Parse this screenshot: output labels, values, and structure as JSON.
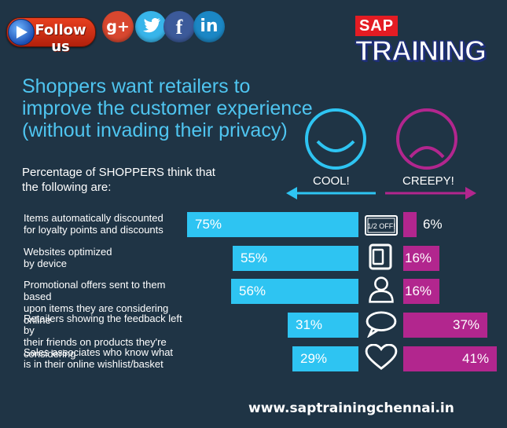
{
  "header": {
    "follow_label": "Follow us",
    "social": {
      "gplus": "g+",
      "facebook": "f",
      "linkedin": "in"
    },
    "brand_top": "SAP",
    "brand_bottom": "TRAINING"
  },
  "colors": {
    "background": "#1f3445",
    "cool": "#2ec4f2",
    "creepy": "#b2268e",
    "headline": "#4fc5f0"
  },
  "icons": [
    "discount-tag-icon",
    "device-icon",
    "person-icon",
    "speech-bubble-icon",
    "heart-icon"
  ],
  "chart_data": {
    "type": "bar",
    "title": "Shoppers want retailers to improve the customer experience (without invading their privacy)",
    "subtitle": "Percentage of SHOPPERS think that the following are:",
    "categories": [
      "Items automatically discounted for loyalty points and discounts",
      "Websites optimized by device",
      "Promotional offers sent to them based upon items they are considering online",
      "Retailers showing the feedback left by their friends on products they're considering",
      "Sales associates who know what is in their online wishlist/basket"
    ],
    "category_lines": [
      [
        "Items automatically discounted",
        "for loyalty points and discounts"
      ],
      [
        "Websites optimized",
        "by device"
      ],
      [
        "Promotional offers sent to them based",
        "upon items they are considering online"
      ],
      [
        "Retailers showing the feedback left by",
        "their friends on products they're considering"
      ],
      [
        "Sales associates who know what",
        "is in their online wishlist/basket"
      ]
    ],
    "series": [
      {
        "name": "COOL!",
        "values": [
          75,
          55,
          56,
          31,
          29
        ],
        "labels": [
          "75%",
          "55%",
          "56%",
          "31%",
          "29%"
        ]
      },
      {
        "name": "CREEPY!",
        "values": [
          6,
          16,
          16,
          37,
          41
        ],
        "labels": [
          "6%",
          "16%",
          "16%",
          "37%",
          "41%"
        ]
      }
    ],
    "icon_text": "1/2 OFF!",
    "xlim": [
      0,
      100
    ]
  },
  "footer": {
    "url": "www.saptrainingchennai.in"
  }
}
